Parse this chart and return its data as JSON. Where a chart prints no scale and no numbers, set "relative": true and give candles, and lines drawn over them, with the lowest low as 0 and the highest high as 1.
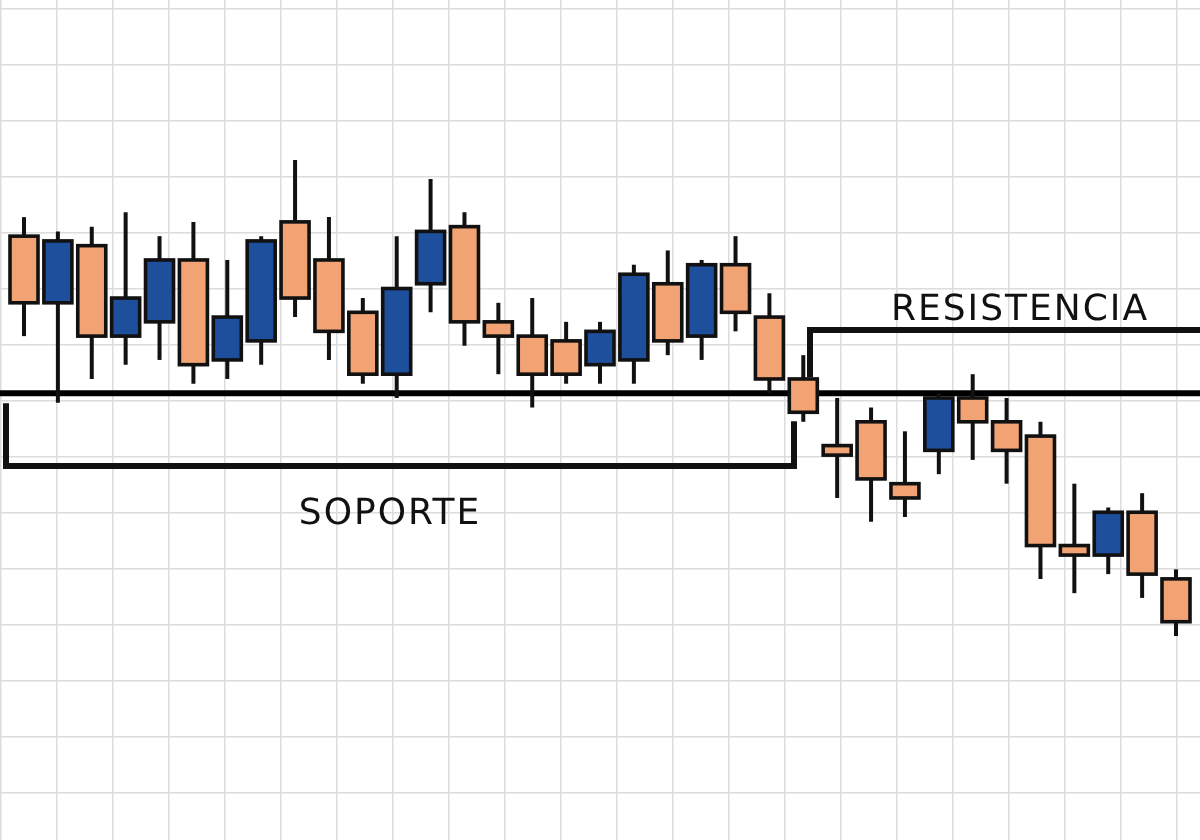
{
  "chart_data": {
    "type": "candlestick",
    "relative": true,
    "categories": [
      null,
      null,
      null,
      null,
      null,
      null,
      null,
      null,
      null,
      null,
      null,
      null,
      null,
      null,
      null,
      null,
      null,
      null,
      null,
      null,
      null,
      null,
      null,
      null,
      null,
      null,
      null,
      null,
      null,
      null,
      null,
      null,
      null,
      null,
      null
    ],
    "ohlc": [
      [
        0.84,
        0.88,
        0.63,
        0.7
      ],
      [
        0.7,
        0.85,
        0.49,
        0.83
      ],
      [
        0.82,
        0.86,
        0.54,
        0.63
      ],
      [
        0.63,
        0.89,
        0.57,
        0.71
      ],
      [
        0.66,
        0.84,
        0.58,
        0.79
      ],
      [
        0.79,
        0.87,
        0.53,
        0.57
      ],
      [
        0.58,
        0.79,
        0.54,
        0.67
      ],
      [
        0.62,
        0.84,
        0.57,
        0.83
      ],
      [
        0.87,
        1.0,
        0.67,
        0.71
      ],
      [
        0.79,
        0.88,
        0.58,
        0.64
      ],
      [
        0.68,
        0.71,
        0.53,
        0.55
      ],
      [
        0.55,
        0.84,
        0.5,
        0.73
      ],
      [
        0.74,
        0.96,
        0.68,
        0.85
      ],
      [
        0.86,
        0.89,
        0.61,
        0.66
      ],
      [
        0.66,
        0.7,
        0.55,
        0.63
      ],
      [
        0.63,
        0.71,
        0.48,
        0.55
      ],
      [
        0.62,
        0.66,
        0.53,
        0.55
      ],
      [
        0.57,
        0.66,
        0.53,
        0.64
      ],
      [
        0.58,
        0.78,
        0.53,
        0.76
      ],
      [
        0.74,
        0.81,
        0.59,
        0.62
      ],
      [
        0.63,
        0.79,
        0.58,
        0.78
      ],
      [
        0.78,
        0.84,
        0.64,
        0.68
      ],
      [
        0.67,
        0.72,
        0.51,
        0.54
      ],
      [
        0.54,
        0.59,
        0.45,
        0.47
      ],
      [
        0.4,
        0.5,
        0.29,
        0.38
      ],
      [
        0.45,
        0.48,
        0.24,
        0.33
      ],
      [
        0.32,
        0.43,
        0.25,
        0.29
      ],
      [
        0.39,
        0.51,
        0.34,
        0.5
      ],
      [
        0.5,
        0.55,
        0.37,
        0.45
      ],
      [
        0.45,
        0.5,
        0.32,
        0.39
      ],
      [
        0.42,
        0.45,
        0.12,
        0.19
      ],
      [
        0.19,
        0.32,
        0.09,
        0.17
      ],
      [
        0.17,
        0.27,
        0.13,
        0.26
      ],
      [
        0.26,
        0.3,
        0.08,
        0.13
      ],
      [
        0.12,
        0.14,
        0.0,
        0.03
      ]
    ],
    "colors": [
      "#f2a373",
      "#1d4f9c",
      "#f2a373",
      "#1d4f9c",
      "#1d4f9c",
      "#f2a373",
      "#1d4f9c",
      "#1d4f9c",
      "#f2a373",
      "#f2a373",
      "#f2a373",
      "#1d4f9c",
      "#1d4f9c",
      "#f2a373",
      "#f2a373",
      "#f2a373",
      "#f2a373",
      "#1d4f9c",
      "#1d4f9c",
      "#f2a373",
      "#1d4f9c",
      "#f2a373",
      "#f2a373",
      "#f2a373",
      "#f2a373",
      "#f2a373",
      "#f2a373",
      "#1d4f9c",
      "#f2a373",
      "#f2a373",
      "#f2a373",
      "#f2a373",
      "#1d4f9c",
      "#f2a373",
      "#f2a373"
    ],
    "ref_lines": [
      {
        "axis": "y",
        "value": 0.51,
        "color": "#000000"
      }
    ],
    "annotations": [
      "RESISTENCIA",
      "SOPORTE"
    ]
  }
}
